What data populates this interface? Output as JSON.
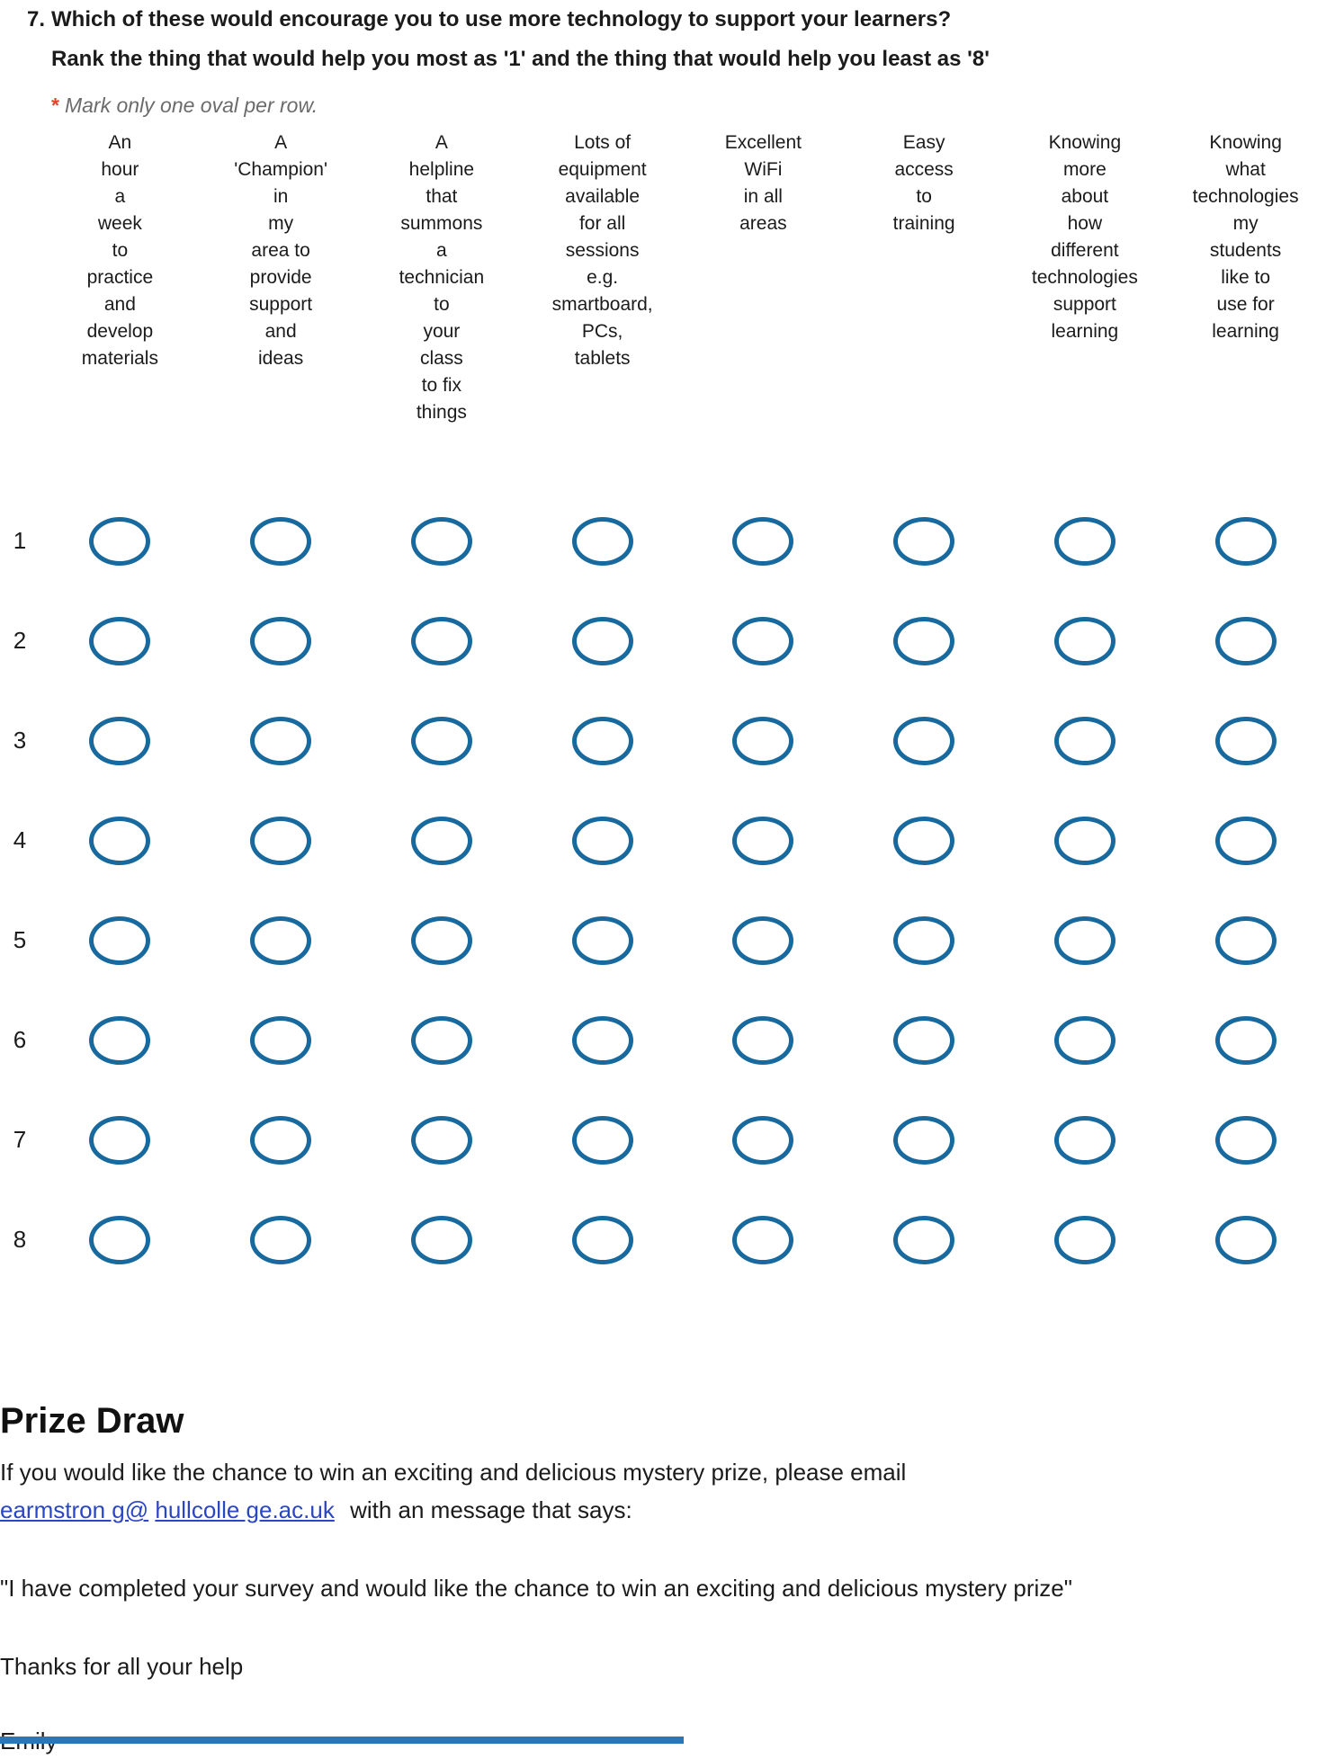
{
  "question": {
    "number": "7.",
    "title": "Which of these would encourage you to use more technology to support your learners?",
    "subtitle": "Rank the thing that would help you most as '1' and the thing that would help you least as '8'",
    "required_marker": "*",
    "instruction": "Mark only one oval per row."
  },
  "grid": {
    "columns": [
      "An\nhour\na\nweek\nto\npractice\nand\ndevelop\nmaterials",
      "A\n'Champion'\nin\nmy\narea to\nprovide\nsupport\nand\nideas",
      "A\nhelpline\nthat\nsummons\na\ntechnician\nto\nyour\nclass\nto fix\nthings",
      "Lots of\nequipment\navailable\nfor all\nsessions\ne.g.\nsmartboard,\nPCs,\ntablets",
      "Excellent\nWiFi\nin all\nareas",
      "Easy\naccess\nto\ntraining",
      "Knowing\nmore\nabout\nhow\ndifferent\ntechnologies\nsupport\nlearning",
      "Knowing\nwhat\ntechnologies\nmy\nstudents\nlike to\nuse for\nlearning"
    ],
    "rows": [
      "1",
      "2",
      "3",
      "4",
      "5",
      "6",
      "7",
      "8"
    ]
  },
  "prize": {
    "heading": "Prize Draw",
    "intro": "If you would like the chance to win an exciting and delicious mystery prize, please email",
    "email_part1": "earmstron g@",
    "email_part2": "hullcolle ge.ac.uk",
    "after_email": "with an message that says:",
    "quote": "\"I have completed your survey and would like the chance to win an exciting and delicious mystery prize\"",
    "thanks": "Thanks for all your help",
    "signature": "Emily"
  },
  "colors": {
    "oval": "#17699e",
    "link": "#2b46c5",
    "required": "#e2452d",
    "instruction_gray": "#6b6b6b",
    "footer_bar": "#2e75b6"
  }
}
